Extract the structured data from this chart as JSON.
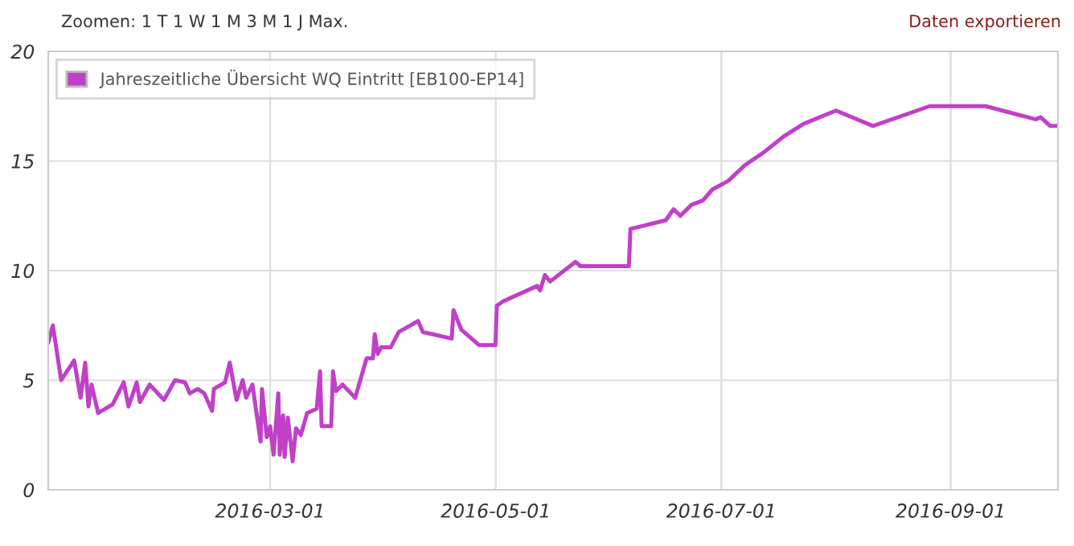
{
  "chart_data": {
    "type": "line",
    "x": [
      "2016-01-01T00:00",
      "2016-01-02T06:00",
      "2016-01-04T12:00",
      "2016-01-08T00:00",
      "2016-01-09T18:00",
      "2016-01-11T00:00",
      "2016-01-11T21:00",
      "2016-01-12T17:00",
      "2016-01-14T12:00",
      "2016-01-18T10:00",
      "2016-01-21T10:00",
      "2016-01-22T17:00",
      "2016-01-24T22:00",
      "2016-01-25T19:00",
      "2016-01-28T10:00",
      "2016-02-01T07:00",
      "2016-02-04T07:00",
      "2016-02-07T00:00",
      "2016-02-08T07:00",
      "2016-02-10T10:00",
      "2016-02-12T05:00",
      "2016-02-14T07:00",
      "2016-02-14T19:00",
      "2016-02-17T19:00",
      "2016-02-19T02:00",
      "2016-02-20T22:00",
      "2016-02-22T14:00",
      "2016-02-23T12:00",
      "2016-02-25T05:00",
      "2016-02-27T10:00",
      "2016-02-27T19:00",
      "2016-02-29T02:00",
      "2016-03-01T00:00",
      "2016-03-01T22:00",
      "2016-03-03T05:00",
      "2016-03-03T14:00",
      "2016-03-04T12:00",
      "2016-03-04T22:00",
      "2016-03-05T19:00",
      "2016-03-07T02:00",
      "2016-03-08T00:00",
      "2016-03-09T07:00",
      "2016-03-11T00:00",
      "2016-03-13T14:00",
      "2016-03-14T12:00",
      "2016-03-14T22:00",
      "2016-03-17T12:00",
      "2016-03-18T00:00",
      "2016-03-18T19:00",
      "2016-03-20T14:00",
      "2016-03-24T00:00",
      "2016-03-27T02:00",
      "2016-03-28T19:00",
      "2016-03-29T07:00",
      "2016-03-30T02:00",
      "2016-03-31T00:00",
      "2016-04-02T14:00",
      "2016-04-04T19:00",
      "2016-04-10T00:00",
      "2016-04-11T07:00",
      "2016-04-19T02:00",
      "2016-04-19T14:00",
      "2016-04-21T17:00",
      "2016-04-26T12:00",
      "2016-04-30T22:00",
      "2016-05-01T07:00",
      "2016-05-03T00:00",
      "2016-05-12T05:00",
      "2016-05-13T00:00",
      "2016-05-14T07:00",
      "2016-05-15T17:00",
      "2016-05-22T14:00",
      "2016-05-23T22:00",
      "2016-06-06T00:00",
      "2016-06-06T10:00",
      "2016-06-16T00:00",
      "2016-06-18T02:00",
      "2016-06-19T22:00",
      "2016-06-22T22:00",
      "2016-06-26T00:00",
      "2016-06-28T14:00",
      "2016-07-02T22:00",
      "2016-07-07T07:00",
      "2016-07-12T12:00",
      "2016-07-17T17:00",
      "2016-07-23T07:00",
      "2016-08-01T00:00",
      "2016-08-11T00:00",
      "2016-08-26T07:00",
      "2016-09-10T12:00",
      "2016-09-24T00:00",
      "2016-09-25T07:00",
      "2016-09-27T22:00",
      "2016-09-29T14:00"
    ],
    "series": [
      {
        "name": "Jahreszeitliche Übersicht WQ Eintritt [EB100-EP14]",
        "color": "#c040c8",
        "values": [
          6.7,
          7.5,
          5.0,
          5.9,
          4.2,
          5.8,
          3.8,
          4.8,
          3.5,
          3.9,
          4.9,
          3.8,
          4.9,
          4.0,
          4.8,
          4.1,
          5.0,
          4.9,
          4.4,
          4.6,
          4.4,
          3.6,
          4.6,
          4.9,
          5.8,
          4.1,
          5.0,
          4.2,
          4.8,
          2.2,
          4.6,
          2.4,
          2.9,
          1.6,
          4.4,
          1.6,
          3.4,
          1.5,
          3.3,
          1.3,
          2.8,
          2.5,
          3.5,
          3.7,
          5.4,
          2.9,
          2.9,
          5.4,
          4.5,
          4.8,
          4.2,
          6.0,
          6.0,
          7.1,
          6.2,
          6.5,
          6.5,
          7.2,
          7.7,
          7.2,
          6.9,
          8.2,
          7.3,
          6.6,
          6.6,
          8.4,
          8.6,
          9.3,
          9.1,
          9.8,
          9.5,
          10.4,
          10.2,
          10.2,
          11.9,
          12.3,
          12.8,
          12.5,
          13.0,
          13.2,
          13.7,
          14.1,
          14.8,
          15.4,
          16.1,
          16.7,
          17.3,
          16.6,
          17.5,
          17.5,
          16.9,
          17.0,
          16.6,
          16.6
        ]
      }
    ],
    "xlim": [
      "2016-01-01",
      "2016-09-30"
    ],
    "xticks": [
      {
        "value": "2016-03-01",
        "label": "2016-03-01"
      },
      {
        "value": "2016-05-01",
        "label": "2016-05-01"
      },
      {
        "value": "2016-07-01",
        "label": "2016-07-01"
      },
      {
        "value": "2016-09-01",
        "label": "2016-09-01"
      }
    ],
    "ylim": [
      0,
      20
    ],
    "yticks": [
      0,
      5,
      10,
      15,
      20
    ],
    "grid": true,
    "legend": "top left",
    "marker": "none",
    "line_style": "solid",
    "annotations": [
      "Zoomen: 1 T 1 W 1 M 3 M 1 J Max.",
      "Daten exportieren"
    ]
  }
}
